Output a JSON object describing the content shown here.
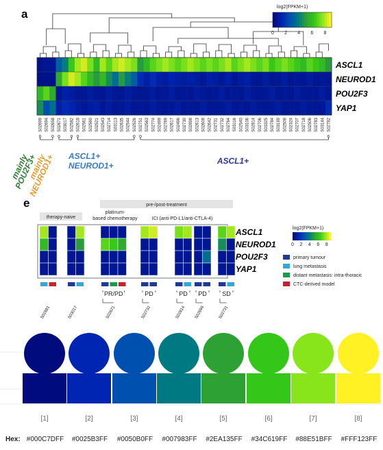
{
  "colors": {
    "scale": [
      "#000C7D",
      "#0025B3",
      "#0050B0",
      "#007983",
      "#2EA135",
      "#34C619",
      "#88E51B",
      "#FFF123"
    ],
    "sample_types": {
      "primary": "#1f3a93",
      "lung": "#33a7d8",
      "distant": "#1a9a4a",
      "ctc": "#c0262b"
    },
    "group_green": "#2e7d32",
    "group_orange": "#e69a2e",
    "group_blue": "#3a7bc8",
    "group_navy": "#2b3990"
  },
  "panel_a": {
    "letter": "a",
    "colorbar": {
      "title": "log2(FPKM+1)",
      "ticks": [
        "0",
        "2",
        "4",
        "6",
        "8"
      ],
      "range": [
        0,
        9
      ]
    },
    "genes": [
      "ASCL1",
      "NEUROD1",
      "POU2F3",
      "YAP1"
    ],
    "samples": [
      "S02699",
      "S02694",
      "S02658",
      "S02671",
      "S03017",
      "S02582",
      "S02618",
      "S02561",
      "S02560",
      "S02521",
      "S02543",
      "S02714",
      "S03113",
      "S02635",
      "S02544",
      "S02526",
      "S02751",
      "S02563",
      "S02774",
      "S02499",
      "S02769",
      "S02617",
      "S02496",
      "S02730",
      "S02898",
      "S02613",
      "S02609",
      "S02642",
      "S02731",
      "S02732",
      "S02764",
      "S03116",
      "S02540",
      "S03106",
      "S02814",
      "S02706",
      "S03325",
      "S02784",
      "S03199",
      "S02509",
      "S02324",
      "S02707",
      "S02718",
      "S02506",
      "S02783",
      "S03144",
      "S02782"
    ],
    "values": [
      [
        0.3,
        0.5,
        0.5,
        3.0,
        4.0,
        6.5,
        8.0,
        8.5,
        7.5,
        6.0,
        8.0,
        7.0,
        8.0,
        8.5,
        8.0,
        7.5,
        5.0,
        6.0,
        7.0,
        7.5,
        8.0,
        7.5,
        7.0,
        7.5,
        8.0,
        7.5,
        7.0,
        7.5,
        7.0,
        7.5,
        8.0,
        7.0,
        7.5,
        8.0,
        7.5,
        7.0,
        7.5,
        6.5,
        7.0,
        7.5,
        7.0,
        6.5,
        6.0,
        7.0,
        6.5,
        6.0,
        5.0
      ],
      [
        0.2,
        0.3,
        0.3,
        5.5,
        7.5,
        8.5,
        8.0,
        7.0,
        6.0,
        5.0,
        6.0,
        4.5,
        3.5,
        5.0,
        4.0,
        3.0,
        1.5,
        1.0,
        1.5,
        1.0,
        0.8,
        1.2,
        1.0,
        0.8,
        1.0,
        0.8,
        0.6,
        1.0,
        0.8,
        0.6,
        1.0,
        0.5,
        0.8,
        1.0,
        0.6,
        0.5,
        0.8,
        0.5,
        0.6,
        0.8,
        0.5,
        0.6,
        0.5,
        0.8,
        0.5,
        0.6,
        0.5
      ],
      [
        6.0,
        7.0,
        5.5,
        0.5,
        1.0,
        0.8,
        0.6,
        0.5,
        0.8,
        0.6,
        0.5,
        0.8,
        0.6,
        0.5,
        0.8,
        0.6,
        0.5,
        0.6,
        0.8,
        0.5,
        0.6,
        0.8,
        0.5,
        0.6,
        0.5,
        0.8,
        0.6,
        0.5,
        0.6,
        0.8,
        0.5,
        0.6,
        0.5,
        0.8,
        0.6,
        0.5,
        0.6,
        0.8,
        0.5,
        0.6,
        0.5,
        0.8,
        0.6,
        0.5,
        0.6,
        0.8,
        0.5
      ],
      [
        4.5,
        2.5,
        3.5,
        1.0,
        1.5,
        1.2,
        0.8,
        0.6,
        0.8,
        1.0,
        0.6,
        0.8,
        0.5,
        0.6,
        0.8,
        0.5,
        0.6,
        0.5,
        0.8,
        0.6,
        0.5,
        0.6,
        0.8,
        0.5,
        0.6,
        0.5,
        0.8,
        0.6,
        0.5,
        0.6,
        0.8,
        0.5,
        0.6,
        0.5,
        0.8,
        0.6,
        0.5,
        0.6,
        0.8,
        0.5,
        0.6,
        0.5,
        0.8,
        0.6,
        0.5,
        0.6,
        1.5
      ]
    ],
    "groups": [
      {
        "lines": [
          "mainly",
          "POU2F3+"
        ],
        "color": "#2e7d32"
      },
      {
        "lines": [
          "mainly",
          "NEUROD1+"
        ],
        "color": "#e69a2e"
      },
      {
        "lines": [
          "ASCL1+",
          "NEUROD1+"
        ],
        "color": "#3a7bc8"
      },
      {
        "lines": [
          "ASCL1+"
        ],
        "color": "#2b3990"
      }
    ]
  },
  "panel_e": {
    "letter": "e",
    "header": "pre-/post-treatment",
    "therapy_naive": "therapy-naive",
    "platinum": [
      "platinum-",
      "based chemotherapy"
    ],
    "ici": "ICI (anti-PD-L1/anti-CTLA-4)",
    "genes": [
      "ASCL1",
      "NEUROD1",
      "POU2F3",
      "YAP1"
    ],
    "colorbar": {
      "title": "log2(FPKM+1)",
      "ticks": [
        "0",
        "2",
        "4",
        "6",
        "8"
      ]
    },
    "legend": [
      "primary tumour",
      "lung metastasis",
      "distant metastasis: intra-thoracic",
      "CTC-derived model"
    ],
    "patients": [
      {
        "id": "S02881",
        "response": "",
        "types": [
          "lung",
          "ctc"
        ],
        "values": [
          [
            8,
            0.5
          ],
          [
            6,
            0.5
          ],
          [
            0.5,
            0.5
          ],
          [
            0.5,
            0.5
          ]
        ]
      },
      {
        "id": "S03017",
        "response": "",
        "types": [
          "primary",
          "lung"
        ],
        "values": [
          [
            0.5,
            8
          ],
          [
            0.5,
            5
          ],
          [
            0.5,
            0.5
          ],
          [
            0.5,
            0.5
          ]
        ]
      },
      {
        "id": "S02671",
        "response": "PR/PD",
        "types": [
          "primary",
          "distant",
          "ctc"
        ],
        "values": [
          [
            0.5,
            0.5,
            0.5
          ],
          [
            7,
            6.5,
            5.5
          ],
          [
            0.5,
            0.5,
            0.5
          ],
          [
            0.5,
            0.5,
            0.5
          ]
        ]
      },
      {
        "id": "S02732",
        "response": "PD",
        "types": [
          "primary",
          "primary"
        ],
        "values": [
          [
            8,
            8.5
          ],
          [
            0.5,
            0.5
          ],
          [
            0.5,
            0.5
          ],
          [
            0.5,
            0.5
          ]
        ]
      },
      {
        "id": "S02814",
        "response": "PD",
        "types": [
          "primary",
          "lung"
        ],
        "values": [
          [
            7.5,
            8
          ],
          [
            0.5,
            0.5
          ],
          [
            0.5,
            0.5
          ],
          [
            0.5,
            0.5
          ]
        ]
      },
      {
        "id": "S02699",
        "response": "PD",
        "types": [
          "primary",
          "primary"
        ],
        "values": [
          [
            0.5,
            0.5
          ],
          [
            0.5,
            0.5
          ],
          [
            0.5,
            3.5
          ],
          [
            0.5,
            0.5
          ]
        ]
      },
      {
        "id": "S02731",
        "response": "SD",
        "types": [
          "primary",
          "lung"
        ],
        "values": [
          [
            7,
            8
          ],
          [
            4.5,
            0.5
          ],
          [
            0.5,
            0.5
          ],
          [
            0.5,
            0.5
          ]
        ]
      }
    ]
  },
  "palette": {
    "hex_label": "Hex:",
    "items": [
      {
        "index": "[1]",
        "hex": "#000C7DFF",
        "color": "#000C7D"
      },
      {
        "index": "[2]",
        "hex": "#0025B3FF",
        "color": "#0025B3"
      },
      {
        "index": "[3]",
        "hex": "#0050B0FF",
        "color": "#0050B0"
      },
      {
        "index": "[4]",
        "hex": "#007983FF",
        "color": "#007983"
      },
      {
        "index": "[5]",
        "hex": "#2EA135FF",
        "color": "#2EA135"
      },
      {
        "index": "[6]",
        "hex": "#34C619FF",
        "color": "#34C619"
      },
      {
        "index": "[7]",
        "hex": "#88E51BFF",
        "color": "#88E51B"
      },
      {
        "index": "[8]",
        "hex": "#FFF123FF",
        "color": "#FFF123"
      }
    ]
  }
}
